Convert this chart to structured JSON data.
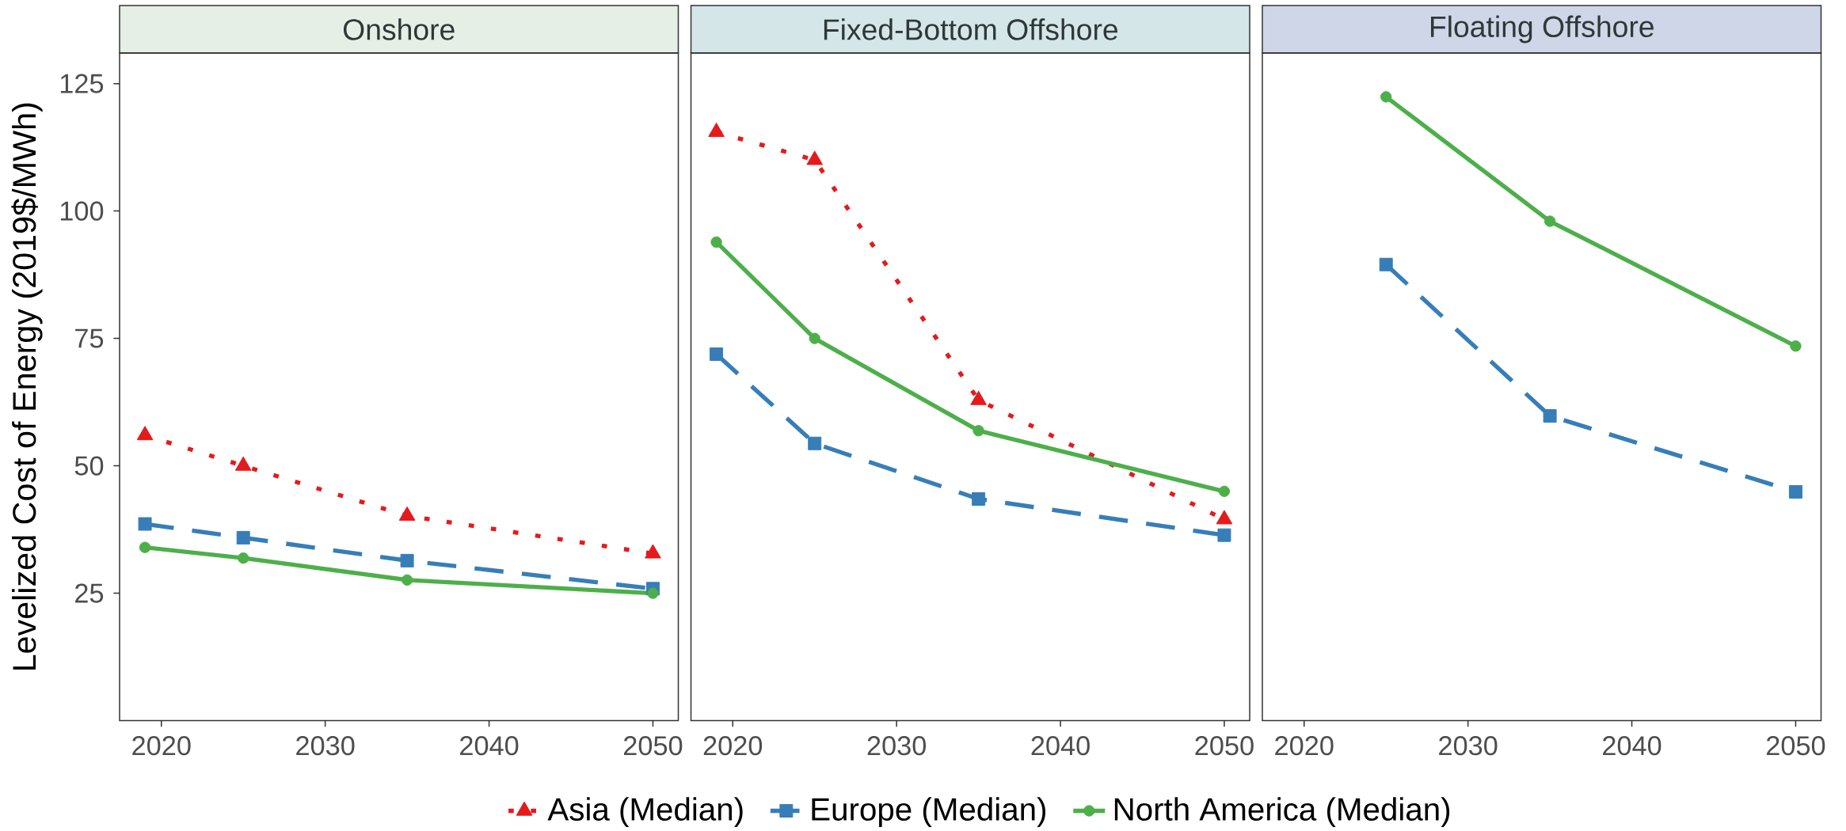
{
  "chart_data": [
    {
      "type": "line",
      "title": "Onshore",
      "ylabel": "Levelized Cost of Energy (2019$/MWh)",
      "x": [
        2019,
        2025,
        2035,
        2050
      ],
      "series": [
        {
          "color": "#e41a1c",
          "marker": "triangle",
          "line_style": "dotted",
          "values": [
            56,
            50,
            40.2,
            32.8
          ]
        },
        {
          "color": "#377eb8",
          "marker": "square",
          "line_style": "dashed",
          "values": [
            38.6,
            35.9,
            31.4,
            25.9
          ]
        },
        {
          "color": "#4daf4a",
          "marker": "circle",
          "line_style": "solid",
          "values": [
            34,
            31.9,
            27.6,
            25
          ]
        }
      ],
      "xlim": [
        2017.45,
        2051.55
      ],
      "xticks": [
        2020,
        2030,
        2040,
        2050
      ],
      "ylim": [
        0,
        131
      ],
      "yticks": [
        25,
        50,
        75,
        100,
        125
      ]
    },
    {
      "type": "line",
      "title": "Fixed-Bottom Offshore",
      "x": [
        2019,
        2025,
        2035,
        2050
      ],
      "legend": "bottom",
      "series": [
        {
          "name": "Asia (Median)",
          "color": "#e41a1c",
          "marker": "triangle",
          "line_style": "dotted",
          "values": [
            115.5,
            110,
            62.9,
            39.5
          ]
        },
        {
          "name": "Europe (Median)",
          "color": "#377eb8",
          "marker": "square",
          "line_style": "dashed",
          "values": [
            71.9,
            54.4,
            43.5,
            36.4
          ]
        },
        {
          "name": "North America (Median)",
          "color": "#4daf4a",
          "marker": "circle",
          "line_style": "solid",
          "values": [
            93.9,
            75,
            56.9,
            45
          ]
        }
      ],
      "xlim": [
        2017.45,
        2051.55
      ],
      "xticks": [
        2020,
        2030,
        2040,
        2050
      ],
      "ylim": [
        0,
        131
      ],
      "tick_labels": "x"
    },
    {
      "type": "line",
      "title": "Floating Offshore",
      "x": [
        2025,
        2035,
        2050
      ],
      "series": [
        {
          "color": "#377eb8",
          "marker": "square",
          "line_style": "dashed",
          "values": [
            89.5,
            59.8,
            44.9
          ]
        },
        {
          "color": "#4daf4a",
          "marker": "circle",
          "line_style": "solid",
          "values": [
            122.4,
            98,
            73.5
          ]
        }
      ],
      "xlim": [
        2017.45,
        2051.55
      ],
      "xticks": [
        2020,
        2030,
        2040,
        2050
      ],
      "ylim": [
        0,
        131
      ],
      "tick_labels": "x"
    }
  ]
}
